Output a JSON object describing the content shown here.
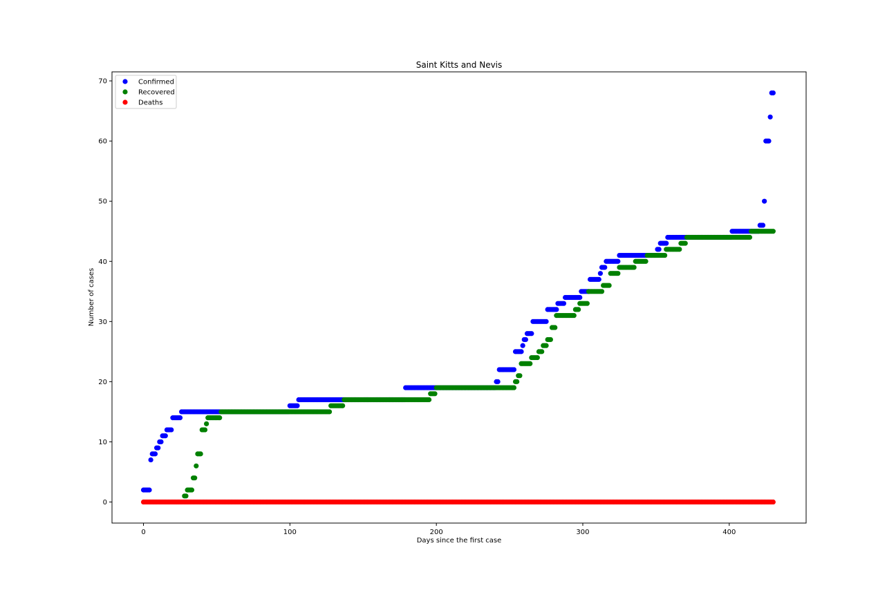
{
  "chart_data": {
    "type": "scatter",
    "title": "Saint Kitts and Nevis",
    "xlabel": "Days since the first case",
    "ylabel": "Number of cases",
    "xlim": [
      -21.5,
      452.5
    ],
    "ylim": [
      -3.5,
      71.5
    ],
    "xticks": [
      0,
      100,
      200,
      300,
      400
    ],
    "yticks": [
      0,
      10,
      20,
      30,
      40,
      50,
      60,
      70
    ],
    "grid": false,
    "legend_position": "top-left",
    "series": [
      {
        "name": "Confirmed",
        "color": "#0000ff",
        "steps": [
          [
            0,
            2
          ],
          [
            5,
            7
          ],
          [
            6,
            8
          ],
          [
            9,
            9
          ],
          [
            11,
            10
          ],
          [
            13,
            11
          ],
          [
            16,
            12
          ],
          [
            20,
            14
          ],
          [
            26,
            15
          ],
          [
            100,
            16
          ],
          [
            106,
            17
          ],
          [
            179,
            19
          ],
          [
            241,
            20
          ],
          [
            243,
            22
          ],
          [
            254,
            25
          ],
          [
            259,
            26
          ],
          [
            260,
            27
          ],
          [
            262,
            28
          ],
          [
            266,
            30
          ],
          [
            276,
            32
          ],
          [
            283,
            33
          ],
          [
            288,
            34
          ],
          [
            299,
            35
          ],
          [
            305,
            37
          ],
          [
            312,
            38
          ],
          [
            313,
            39
          ],
          [
            316,
            40
          ],
          [
            325,
            41
          ],
          [
            351,
            42
          ],
          [
            353,
            43
          ],
          [
            358,
            44
          ],
          [
            402,
            45
          ],
          [
            421,
            46
          ],
          [
            424,
            50
          ],
          [
            425,
            60
          ],
          [
            428,
            64
          ],
          [
            429,
            68
          ]
        ],
        "last_day": 430
      },
      {
        "name": "Recovered",
        "color": "#008000",
        "steps": [
          [
            28,
            1
          ],
          [
            30,
            2
          ],
          [
            34,
            4
          ],
          [
            36,
            6
          ],
          [
            37,
            8
          ],
          [
            40,
            12
          ],
          [
            43,
            13
          ],
          [
            44,
            14
          ],
          [
            53,
            15
          ],
          [
            128,
            16
          ],
          [
            137,
            17
          ],
          [
            196,
            18
          ],
          [
            200,
            19
          ],
          [
            254,
            20
          ],
          [
            256,
            21
          ],
          [
            258,
            23
          ],
          [
            265,
            24
          ],
          [
            270,
            25
          ],
          [
            273,
            26
          ],
          [
            276,
            27
          ],
          [
            279,
            29
          ],
          [
            282,
            31
          ],
          [
            295,
            32
          ],
          [
            298,
            33
          ],
          [
            304,
            35
          ],
          [
            314,
            36
          ],
          [
            319,
            38
          ],
          [
            325,
            39
          ],
          [
            336,
            40
          ],
          [
            344,
            41
          ],
          [
            357,
            42
          ],
          [
            367,
            43
          ],
          [
            371,
            44
          ],
          [
            415,
            45
          ]
        ],
        "last_day": 430
      },
      {
        "name": "Deaths",
        "color": "#ff0000",
        "steps": [
          [
            0,
            0
          ]
        ],
        "last_day": 430
      }
    ]
  }
}
